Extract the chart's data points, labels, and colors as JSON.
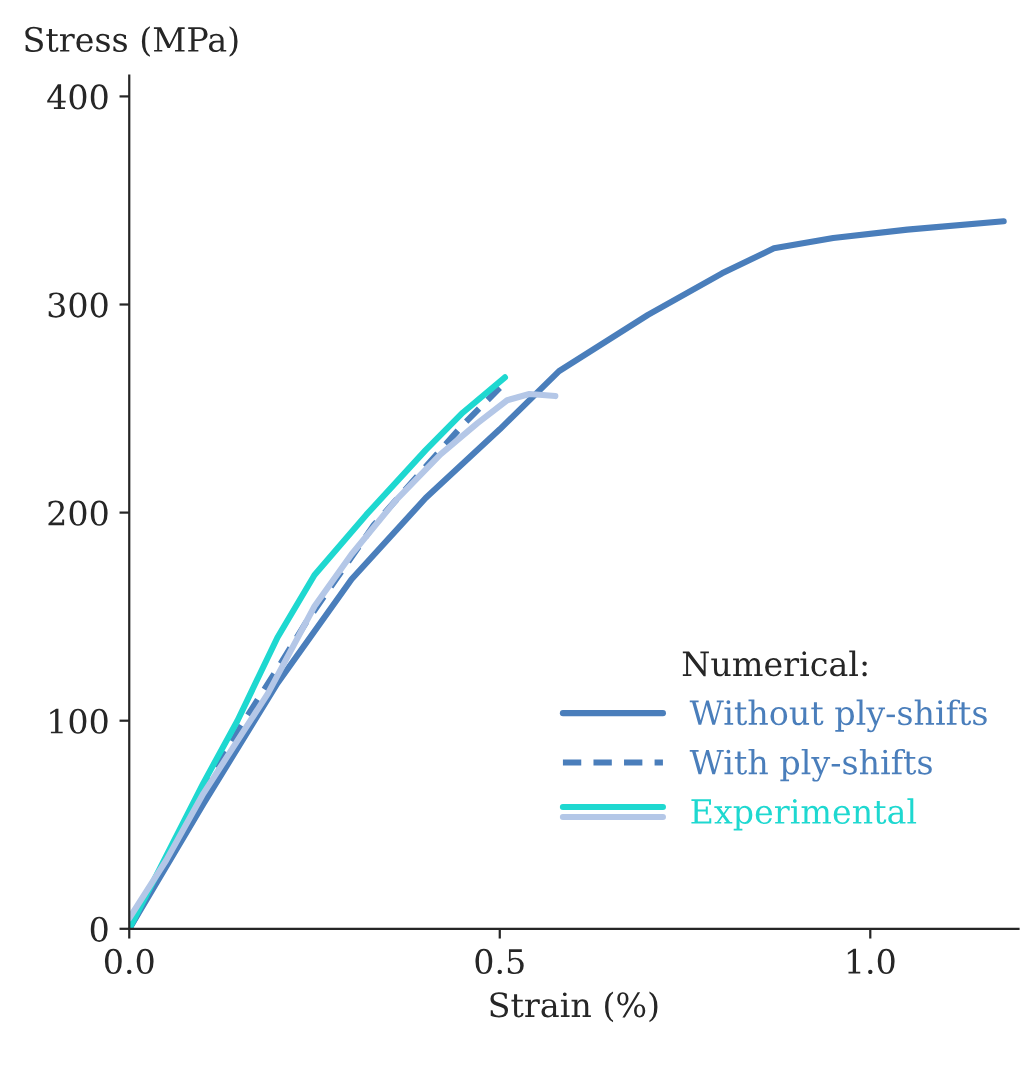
{
  "chart_data": {
    "type": "line",
    "xlabel": "Strain (%)",
    "ylabel": "Stress (MPa)",
    "legend_title": "Numerical:",
    "xlim": [
      0,
      1.2
    ],
    "ylim": [
      0,
      410
    ],
    "xticks": [
      {
        "value": 0,
        "label": "0.0"
      },
      {
        "value": 0.5,
        "label": "0.5"
      },
      {
        "value": 1.0,
        "label": "1.0"
      }
    ],
    "yticks": [
      0,
      100,
      200,
      300,
      400
    ],
    "grid": false,
    "legend": "bottom right",
    "marker": "none",
    "series": [
      {
        "name": "Without ply-shifts",
        "color": "#4a7ebb",
        "line_style": "solid",
        "x": [
          0,
          0.1,
          0.2,
          0.3,
          0.4,
          0.5,
          0.58,
          0.7,
          0.8,
          0.87,
          0.95,
          1.05,
          1.18
        ],
        "values": [
          0,
          60,
          118,
          168,
          207,
          240,
          268,
          295,
          315,
          327,
          332,
          336,
          340
        ]
      },
      {
        "name": "With ply-shifts",
        "color": "#4a7ebb",
        "line_style": "dashed",
        "x": [
          0,
          0.05,
          0.1,
          0.15,
          0.2,
          0.24,
          0.33,
          0.4,
          0.45,
          0.5
        ],
        "values": [
          0,
          32,
          65,
          97,
          125,
          148,
          194,
          222,
          242,
          260
        ]
      },
      {
        "name": "Experimental",
        "color": "#1ed8d0",
        "line_style": "solid",
        "x": [
          0,
          0.05,
          0.1,
          0.146,
          0.2,
          0.25,
          0.32,
          0.4,
          0.45,
          0.507
        ],
        "values": [
          0,
          35,
          70,
          100,
          140,
          170,
          199,
          230,
          248,
          265
        ]
      },
      {
        "color": "#b4c7e7",
        "line_style": "solid",
        "x": [
          0,
          0.05,
          0.1,
          0.187,
          0.25,
          0.3,
          0.36,
          0.42,
          0.47,
          0.51,
          0.54,
          0.575
        ],
        "values": [
          5,
          33,
          65,
          113,
          155,
          180,
          206,
          228,
          243,
          254,
          257,
          256
        ]
      }
    ]
  }
}
